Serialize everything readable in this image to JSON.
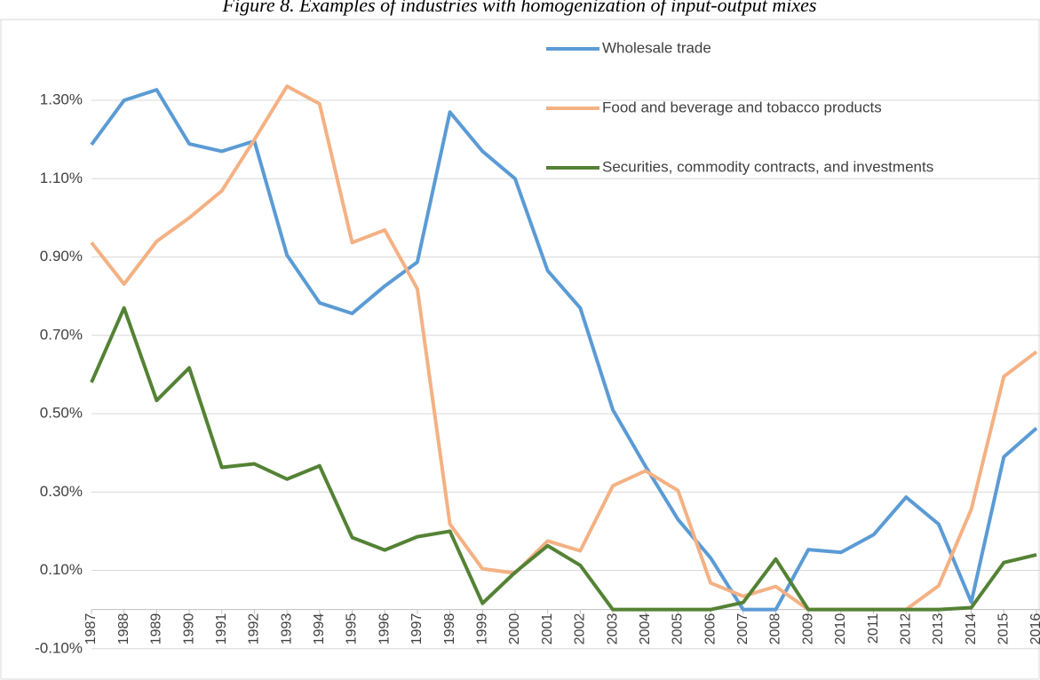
{
  "chart_data": {
    "type": "line",
    "title": "Figure 8. Examples of industries with homogenization of input-output mixes",
    "categories": [
      "1987",
      "1988",
      "1989",
      "1990",
      "1991",
      "1992",
      "1993",
      "1994",
      "1995",
      "1996",
      "1997",
      "1998",
      "1999",
      "2000",
      "2001",
      "2002",
      "2003",
      "2004",
      "2005",
      "2006",
      "2007",
      "2008",
      "2009",
      "2010",
      "2011",
      "2012",
      "2013",
      "2014",
      "2015",
      "2016"
    ],
    "series": [
      {
        "name": "Wholesale trade",
        "color": "#5b9bd5",
        "values": [
          1.187,
          1.3,
          1.327,
          1.189,
          1.17,
          1.196,
          0.905,
          0.783,
          0.756,
          0.826,
          0.887,
          1.27,
          1.17,
          1.1,
          0.865,
          0.77,
          0.51,
          0.366,
          0.23,
          0.132,
          0,
          0,
          0.153,
          0.146,
          0.191,
          0.287,
          0.218,
          0.019,
          0.39,
          0.463
        ]
      },
      {
        "name": "Food and beverage and tobacco products",
        "color": "#f4b183",
        "values": [
          0.937,
          0.831,
          0.94,
          1.0,
          1.069,
          1.2,
          1.336,
          1.291,
          0.937,
          0.969,
          0.819,
          0.218,
          0.104,
          0.093,
          0.175,
          0.15,
          0.316,
          0.354,
          0.304,
          0.068,
          0.034,
          0.059,
          0,
          0,
          0,
          0,
          0.061,
          0.256,
          0.595,
          0.658
        ]
      },
      {
        "name": "Securities, commodity contracts, and investments",
        "color": "#548235",
        "values": [
          0.58,
          0.77,
          0.534,
          0.617,
          0.363,
          0.372,
          0.333,
          0.367,
          0.184,
          0.152,
          0.186,
          0.2,
          0.016,
          0.095,
          0.163,
          0.113,
          0,
          0,
          0,
          0,
          0.018,
          0.129,
          0,
          0,
          0,
          0,
          0,
          0.005,
          0.12,
          0.14
        ]
      }
    ],
    "ylim": [
      -0.1,
      1.5
    ],
    "yticks": [
      {
        "value": -0.1,
        "label": "-0.10%"
      },
      {
        "value": 0.1,
        "label": "0.10%"
      },
      {
        "value": 0.3,
        "label": "0.30%"
      },
      {
        "value": 0.5,
        "label": "0.50%"
      },
      {
        "value": 0.7,
        "label": "0.70%"
      },
      {
        "value": 0.9,
        "label": "0.90%"
      },
      {
        "value": 1.1,
        "label": "1.10%"
      },
      {
        "value": 1.3,
        "label": "1.30%"
      }
    ],
    "grid": true,
    "legend": "top-right"
  }
}
